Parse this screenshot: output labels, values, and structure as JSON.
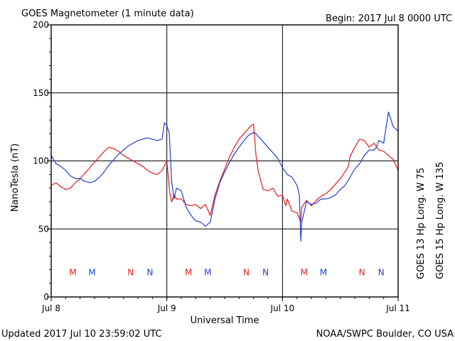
{
  "chart_data": {
    "type": "line",
    "title": "GOES Magnetometer (1 minute data)",
    "begin_label": "Begin:  2017 Jul 8 0000 UTC",
    "ylabel": "NanoTesla (nT)",
    "xlabel": "Universal Time",
    "ylim": [
      0,
      200
    ],
    "xlim": [
      0,
      72
    ],
    "x_unit": "hours since 2017 Jul 8 0000 UTC",
    "y_ticks": [
      "0",
      "50",
      "100",
      "150",
      "200"
    ],
    "y_tick_values": [
      0,
      50,
      100,
      150,
      200
    ],
    "x_ticks": [
      "Jul 8",
      "Jul 9",
      "Jul 10",
      "Jul 11"
    ],
    "x_tick_values": [
      0,
      24,
      48,
      72
    ],
    "grid": true,
    "legend_placement": "right",
    "series": [
      {
        "name": "GOES 13 Hp  Long. W 75",
        "color": "#e41a1c",
        "markers": [
          {
            "label": "M",
            "x": 4.5
          },
          {
            "label": "N",
            "x": 16.5
          },
          {
            "label": "M",
            "x": 28.5
          },
          {
            "label": "N",
            "x": 40.5
          },
          {
            "label": "M",
            "x": 52.5
          },
          {
            "label": "N",
            "x": 64.5
          }
        ],
        "x": [
          0,
          1,
          2,
          3,
          4,
          5,
          6,
          7,
          8,
          9,
          10,
          11,
          12,
          13,
          14,
          15,
          16,
          17,
          18,
          19,
          20,
          21,
          22,
          23,
          24,
          24.6,
          25,
          25.5,
          26,
          27,
          28,
          29,
          30,
          31,
          32,
          33,
          34,
          35,
          36,
          37,
          38,
          39,
          40,
          41,
          41.5,
          42,
          42.5,
          43,
          44,
          45,
          46,
          47,
          48,
          48.7,
          49,
          50,
          51,
          51.8,
          52,
          53,
          54,
          55,
          56,
          57,
          58,
          59,
          60,
          61,
          61.7,
          62,
          63,
          64,
          65,
          66,
          67,
          68,
          69,
          70,
          71,
          72
        ],
        "y": [
          82,
          84,
          81,
          79,
          80,
          84,
          87,
          91,
          95,
          99,
          103,
          107,
          110,
          109,
          107,
          104,
          102,
          100,
          98,
          96,
          93,
          91,
          90,
          93,
          100,
          77,
          70,
          75,
          72,
          72,
          68,
          67,
          68,
          65,
          68,
          60,
          75,
          85,
          94,
          103,
          110,
          116,
          120,
          124,
          126,
          127,
          104,
          92,
          79,
          78,
          80,
          74,
          75,
          67,
          72,
          63,
          62,
          55,
          66,
          71,
          67,
          71,
          74,
          76,
          79,
          83,
          87,
          92,
          96,
          103,
          110,
          116,
          115,
          110,
          113,
          108,
          107,
          104,
          101,
          93
        ]
      },
      {
        "name": "GOES 15 Hp  Long. W 135",
        "color": "#1f3fd1",
        "markers": [
          {
            "label": "M",
            "x": 8.5
          },
          {
            "label": "N",
            "x": 20.5
          },
          {
            "label": "M",
            "x": 32.5
          },
          {
            "label": "N",
            "x": 44.5
          },
          {
            "label": "M",
            "x": 56.5
          },
          {
            "label": "N",
            "x": 68.5
          }
        ],
        "x": [
          0,
          1,
          2,
          3,
          4,
          5,
          6,
          7,
          8,
          9,
          10,
          11,
          12,
          13,
          14,
          15,
          16,
          17,
          18,
          19,
          20,
          21,
          22,
          23,
          23.5,
          24,
          24.5,
          25,
          25.5,
          26,
          27,
          28,
          29,
          30,
          31,
          32,
          33,
          34,
          35,
          36,
          37,
          38,
          39,
          40,
          41,
          42,
          42.5,
          43,
          44,
          45,
          46,
          47,
          48,
          49,
          50,
          51,
          51.5,
          51.8,
          52,
          53,
          54,
          55,
          56,
          57,
          58,
          59,
          60,
          61,
          62,
          63,
          64,
          65,
          66,
          67,
          67.5,
          68,
          69,
          70,
          71,
          72
        ],
        "y": [
          104,
          98,
          96,
          93,
          89,
          87,
          87,
          85,
          84,
          85,
          88,
          92,
          97,
          101,
          105,
          108,
          111,
          113,
          115,
          116,
          117,
          116,
          115,
          116,
          128,
          126,
          120,
          85,
          72,
          80,
          78,
          66,
          60,
          56,
          55,
          52,
          55,
          72,
          84,
          92,
          99,
          105,
          110,
          115,
          119,
          121,
          120,
          118,
          114,
          110,
          106,
          102,
          95,
          90,
          88,
          82,
          75,
          41,
          55,
          70,
          68,
          69,
          72,
          72,
          73,
          75,
          79,
          82,
          88,
          94,
          98,
          104,
          108,
          108,
          110,
          115,
          113,
          136,
          125,
          122
        ]
      }
    ]
  },
  "footer": {
    "updated": "Updated 2017 Jul 10 23:59:02 UTC",
    "source": "NOAA/SWPC Boulder, CO USA"
  }
}
